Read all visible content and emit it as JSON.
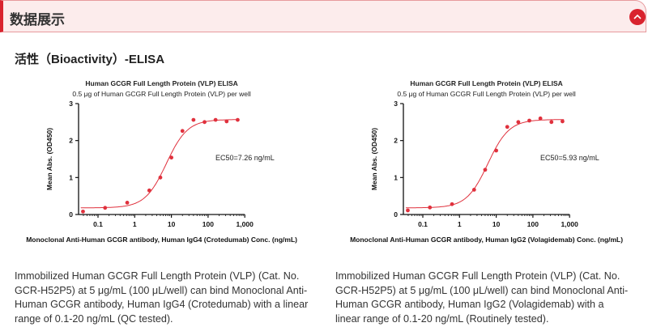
{
  "header": {
    "title": "数据展示",
    "collapse_icon": "chevron-up-icon",
    "accent": "#d9232e"
  },
  "section_title": "活性（Bioactivity）-ELISA",
  "descriptions": [
    "Immobilized Human GCGR Full Length Protein (VLP) (Cat. No. GCR-H52P5) at 5 μg/mL (100 μL/well) can bind Monoclonal Anti-Human GCGR antibody, Human IgG4 (Crotedumab) with a linear range of 0.1-20 ng/mL (QC tested).",
    "Immobilized Human GCGR Full Length Protein (VLP) (Cat. No. GCR-H52P5) at 5 μg/mL (100 μL/well) can bind Monoclonal Anti-Human GCGR antibody, Human IgG2 (Volagidemab) with a linear range of 0.1-20 ng/mL (Routinely tested)."
  ],
  "chart_data": [
    {
      "type": "scatter",
      "title": "Human GCGR Full Length Protein (VLP) ELISA",
      "subtitle": "0.5 μg of Human GCGR Full Length Protein (VLP) per well",
      "xlabel": "Monoclonal Anti-Human GCGR antibody, Human IgG4 (Crotedumab) Conc. (ng/mL)",
      "ylabel": "Mean Abs. (OD450)",
      "xscale": "log",
      "xlim": [
        0.03,
        1000
      ],
      "ylim": [
        0,
        3
      ],
      "xticks": [
        "0.1",
        "1",
        "10",
        "100",
        "1,000"
      ],
      "xtick_values": [
        0.1,
        1,
        10,
        100,
        1000
      ],
      "yticks": [
        "0",
        "1",
        "2",
        "3"
      ],
      "annotation": "EC50=7.26 ng/mL",
      "ec50": 7.26,
      "color": "#e0313d",
      "grid": false,
      "x": [
        0.039,
        0.156,
        0.625,
        2.5,
        5,
        10,
        20,
        40,
        80,
        160,
        320,
        640
      ],
      "y": [
        0.08,
        0.18,
        0.32,
        0.65,
        1.0,
        1.54,
        2.26,
        2.56,
        2.5,
        2.56,
        2.52,
        2.56
      ]
    },
    {
      "type": "scatter",
      "title": "Human GCGR Full Length Protein (VLP) ELISA",
      "subtitle": "0.5 μg of Human GCGR Full Length Protein (VLP) per well",
      "xlabel": "Monoclonal Anti-Human GCGR antibody, Human IgG2 (Volagidemab) Conc. (ng/mL)",
      "ylabel": "Mean Abs. (OD450)",
      "xscale": "log",
      "xlim": [
        0.03,
        1000
      ],
      "ylim": [
        0,
        3
      ],
      "xticks": [
        "0.1",
        "1",
        "10",
        "100",
        "1,000"
      ],
      "xtick_values": [
        0.1,
        1,
        10,
        100,
        1000
      ],
      "yticks": [
        "0",
        "1",
        "2",
        "3"
      ],
      "annotation": "EC50=5.93 ng/mL",
      "ec50": 5.93,
      "color": "#e0313d",
      "grid": false,
      "x": [
        0.039,
        0.156,
        0.625,
        2.5,
        5,
        10,
        20,
        40,
        80,
        160,
        320,
        640
      ],
      "y": [
        0.11,
        0.19,
        0.28,
        0.67,
        1.21,
        1.73,
        2.37,
        2.5,
        2.54,
        2.6,
        2.5,
        2.52
      ]
    }
  ]
}
